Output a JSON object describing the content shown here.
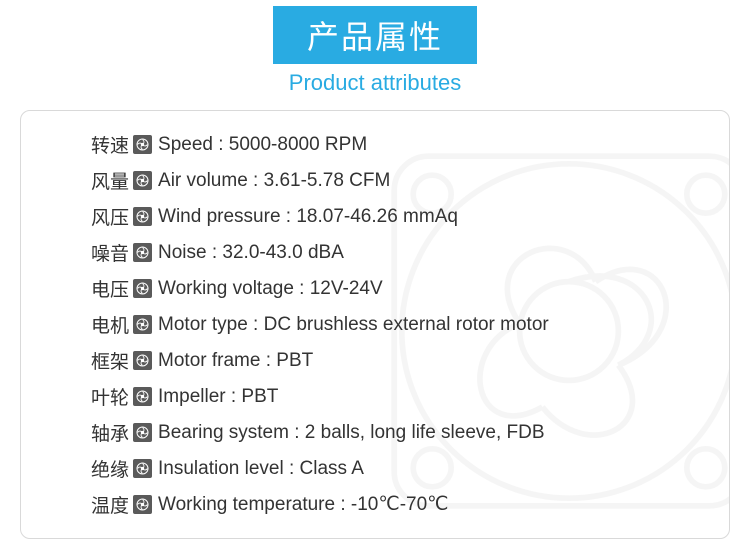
{
  "header": {
    "title_cn": "产品属性",
    "title_en": "Product attributes"
  },
  "colors": {
    "accent": "#29abe2",
    "text": "#333333",
    "icon_bg": "#5a5a5a",
    "border": "#d9d9d9",
    "background": "#ffffff"
  },
  "typography": {
    "title_fontsize": 32,
    "subtitle_fontsize": 22,
    "row_fontsize": 19
  },
  "attributes": [
    {
      "cn": "转速",
      "en": "Speed : 5000-8000 RPM"
    },
    {
      "cn": "风量",
      "en": "Air volume : 3.61-5.78 CFM"
    },
    {
      "cn": "风压",
      "en": "Wind pressure : 18.07-46.26 mmAq"
    },
    {
      "cn": "噪音",
      "en": "Noise : 32.0-43.0 dBA"
    },
    {
      "cn": "电压",
      "en": "Working voltage :  12V-24V"
    },
    {
      "cn": "电机",
      "en": "Motor type : DC brushless external rotor motor"
    },
    {
      "cn": "框架",
      "en": "Motor frame : PBT"
    },
    {
      "cn": "叶轮",
      "en": "Impeller : PBT"
    },
    {
      "cn": "轴承",
      "en": "Bearing system : 2 balls, long life sleeve, FDB"
    },
    {
      "cn": "绝缘",
      "en": "Insulation level : Class A"
    },
    {
      "cn": "温度",
      "en": "Working temperature : -10℃-70℃"
    }
  ]
}
